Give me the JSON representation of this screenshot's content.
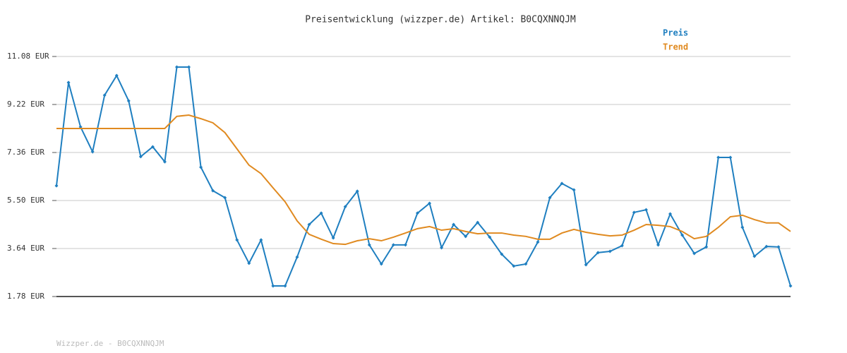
{
  "chart_data": {
    "type": "line",
    "title": "Preisentwicklung (wizzper.de) Artikel: B0CQXNNQJM",
    "footer": "Wizzper.de - B0CQXNNQJM",
    "ylim": [
      1.78,
      11.08
    ],
    "yticks": [
      {
        "value": 1.78,
        "label": "1.78 EUR"
      },
      {
        "value": 3.64,
        "label": "3.64 EUR"
      },
      {
        "value": 5.5,
        "label": "5.50 EUR"
      },
      {
        "value": 7.36,
        "label": "7.36 EUR"
      },
      {
        "value": 9.22,
        "label": "9.22 EUR"
      },
      {
        "value": 11.08,
        "label": "11.08 EUR"
      }
    ],
    "grid": true,
    "legend": "top-right",
    "series": [
      {
        "name": "Preis",
        "color": "#1f7fc0",
        "markers": true,
        "values": [
          6.07,
          10.07,
          8.35,
          7.39,
          9.58,
          10.34,
          9.36,
          7.2,
          7.58,
          7.0,
          10.67,
          10.67,
          6.79,
          5.88,
          5.61,
          3.97,
          3.07,
          3.97,
          2.19,
          2.19,
          3.31,
          4.57,
          5.01,
          4.05,
          5.26,
          5.86,
          3.78,
          3.04,
          3.78,
          3.78,
          5.01,
          5.39,
          3.67,
          4.57,
          4.11,
          4.65,
          4.08,
          3.42,
          2.96,
          3.04,
          3.89,
          5.61,
          6.16,
          5.91,
          3.01,
          3.48,
          3.53,
          3.75,
          5.04,
          5.14,
          3.78,
          4.98,
          4.16,
          3.45,
          3.7,
          7.17,
          7.17,
          4.46,
          3.34,
          3.72,
          3.7,
          2.19
        ]
      },
      {
        "name": "Trend",
        "color": "#e08a20",
        "markers": false,
        "values": [
          8.29,
          8.29,
          8.29,
          8.29,
          8.29,
          8.29,
          8.29,
          8.29,
          8.29,
          8.29,
          8.76,
          8.81,
          8.67,
          8.51,
          8.13,
          7.5,
          6.87,
          6.54,
          5.99,
          5.45,
          4.71,
          4.19,
          4.0,
          3.83,
          3.8,
          3.94,
          4.02,
          3.94,
          4.08,
          4.24,
          4.41,
          4.49,
          4.35,
          4.41,
          4.3,
          4.21,
          4.24,
          4.24,
          4.16,
          4.11,
          4.0,
          4.0,
          4.24,
          4.38,
          4.27,
          4.19,
          4.13,
          4.16,
          4.35,
          4.57,
          4.54,
          4.49,
          4.3,
          4.02,
          4.11,
          4.46,
          4.87,
          4.93,
          4.76,
          4.63,
          4.63,
          4.3
        ]
      }
    ]
  }
}
